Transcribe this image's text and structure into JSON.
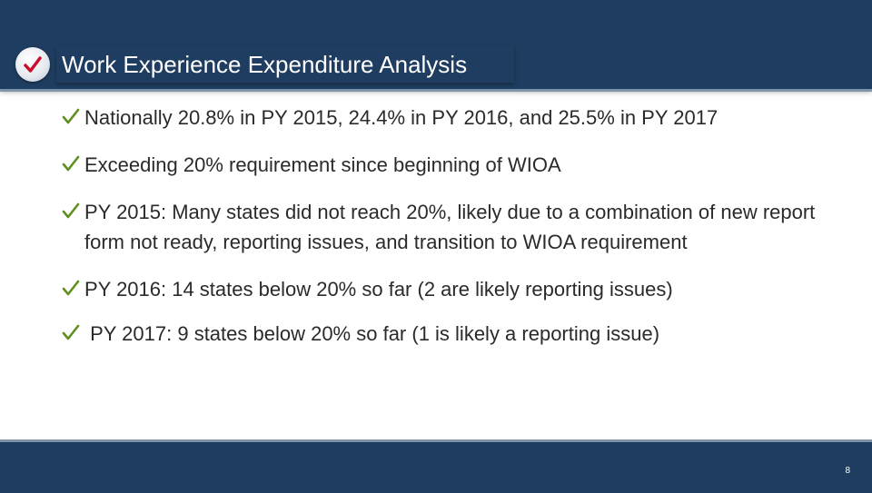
{
  "slide": {
    "title": "Work Experience Expenditure Analysis",
    "title_icon": "check-icon",
    "bullets": [
      "Nationally 20.8% in PY 2015, 24.4% in PY 2016, and 25.5% in PY 2017",
      "Exceeding 20% requirement since beginning of WIOA",
      "PY 2015: Many states did not reach 20%, likely due to a combination of new report form not ready, reporting issues, and transition to WIOA requirement",
      "PY 2016: 14 states below 20% so far (2 are likely reporting issues)",
      " PY 2017: 9 states below 20% so far (1 is likely a reporting issue)"
    ],
    "bullet_icon": "check-icon",
    "page_number": "8"
  },
  "colors": {
    "header": "#1f3d60",
    "accent_rule": "#7f93ab",
    "check": "#5f8f1f",
    "text": "#2a2a2a"
  }
}
